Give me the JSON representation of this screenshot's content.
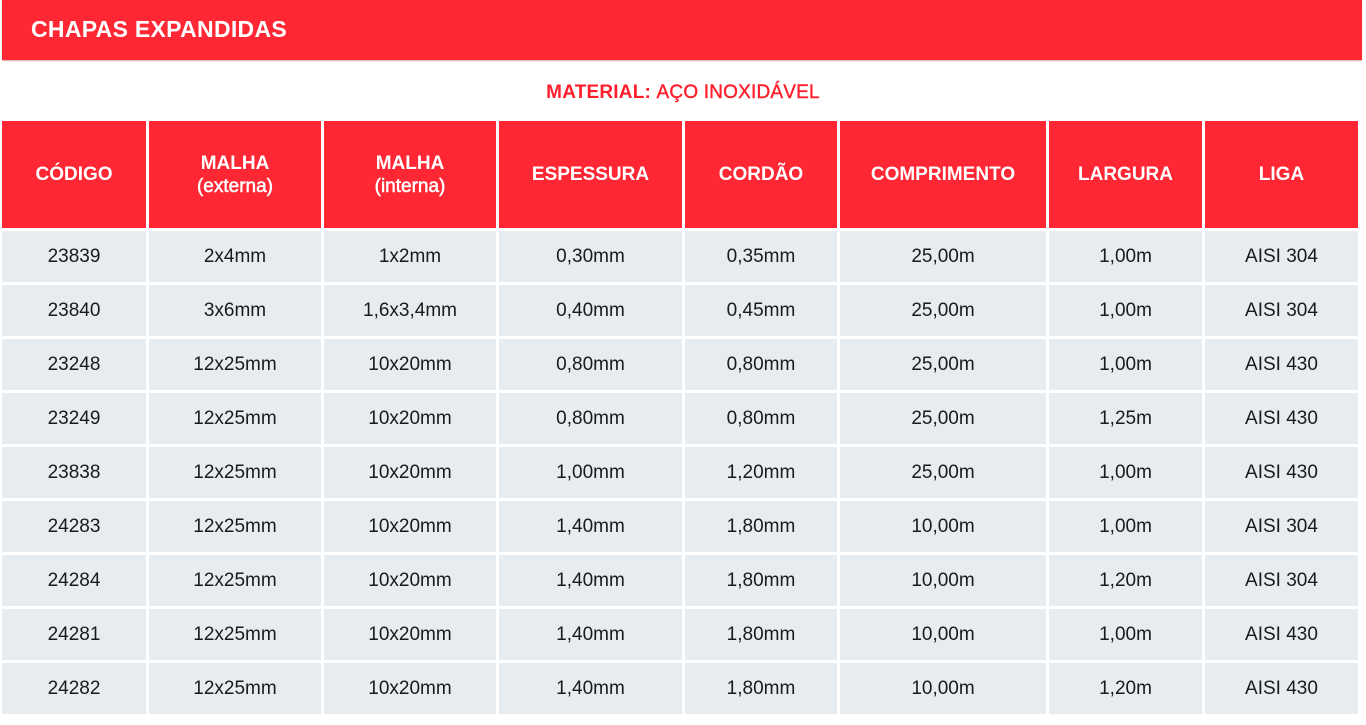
{
  "header": {
    "title": "CHAPAS EXPANDIDAS"
  },
  "material": {
    "label": "MATERIAL:",
    "value": "AÇO INOXIDÁVEL"
  },
  "colors": {
    "accent_red": "#ff2733",
    "row_background": "#e7ecf1",
    "header_text": "#ffffff",
    "body_text": "#1a1a1a"
  },
  "table": {
    "columns": [
      {
        "label": "CÓDIGO",
        "sub": ""
      },
      {
        "label": "MALHA",
        "sub": "(externa)"
      },
      {
        "label": "MALHA",
        "sub": "(interna)"
      },
      {
        "label": "ESPESSURA",
        "sub": ""
      },
      {
        "label": "CORDÃO",
        "sub": ""
      },
      {
        "label": "COMPRIMENTO",
        "sub": ""
      },
      {
        "label": "LARGURA",
        "sub": ""
      },
      {
        "label": "LIGA",
        "sub": ""
      }
    ],
    "rows": [
      [
        "23839",
        "2x4mm",
        "1x2mm",
        "0,30mm",
        "0,35mm",
        "25,00m",
        "1,00m",
        "AISI 304"
      ],
      [
        "23840",
        "3x6mm",
        "1,6x3,4mm",
        "0,40mm",
        "0,45mm",
        "25,00m",
        "1,00m",
        "AISI 304"
      ],
      [
        "23248",
        "12x25mm",
        "10x20mm",
        "0,80mm",
        "0,80mm",
        "25,00m",
        "1,00m",
        "AISI 430"
      ],
      [
        "23249",
        "12x25mm",
        "10x20mm",
        "0,80mm",
        "0,80mm",
        "25,00m",
        "1,25m",
        "AISI 430"
      ],
      [
        "23838",
        "12x25mm",
        "10x20mm",
        "1,00mm",
        "1,20mm",
        "25,00m",
        "1,00m",
        "AISI 430"
      ],
      [
        "24283",
        "12x25mm",
        "10x20mm",
        "1,40mm",
        "1,80mm",
        "10,00m",
        "1,00m",
        "AISI 304"
      ],
      [
        "24284",
        "12x25mm",
        "10x20mm",
        "1,40mm",
        "1,80mm",
        "10,00m",
        "1,20m",
        "AISI 304"
      ],
      [
        "24281",
        "12x25mm",
        "10x20mm",
        "1,40mm",
        "1,80mm",
        "10,00m",
        "1,00m",
        "AISI 430"
      ],
      [
        "24282",
        "12x25mm",
        "10x20mm",
        "1,40mm",
        "1,80mm",
        "10,00m",
        "1,20m",
        "AISI 430"
      ]
    ]
  }
}
